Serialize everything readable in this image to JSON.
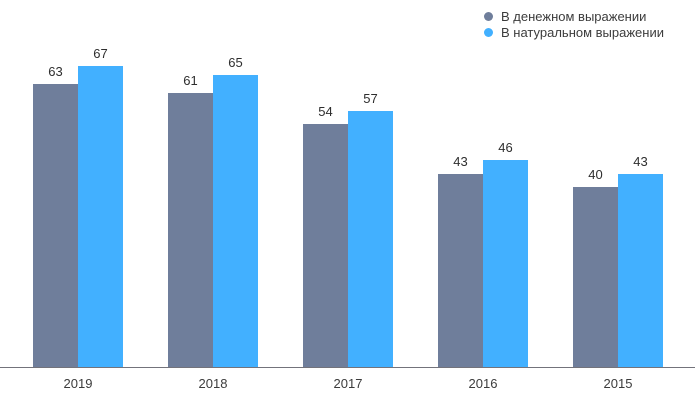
{
  "chart_data": {
    "type": "bar",
    "categories": [
      "2019",
      "2018",
      "2017",
      "2016",
      "2015"
    ],
    "series": [
      {
        "name": "В денежном выражении",
        "color": "#6f7e9b",
        "values": [
          63,
          61,
          54,
          43,
          40
        ]
      },
      {
        "name": "В натуральном выражении",
        "color": "#42b0ff",
        "values": [
          67,
          65,
          57,
          46,
          43
        ]
      }
    ],
    "title": "",
    "xlabel": "",
    "ylabel": "",
    "ylim": [
      0,
      70
    ],
    "grid": false,
    "legend_position": "top-right",
    "value_labels": true,
    "axis_line_color": "#73737b",
    "value_label_color": "#2e2e2e",
    "tick_label_color": "#3c3c3c"
  }
}
